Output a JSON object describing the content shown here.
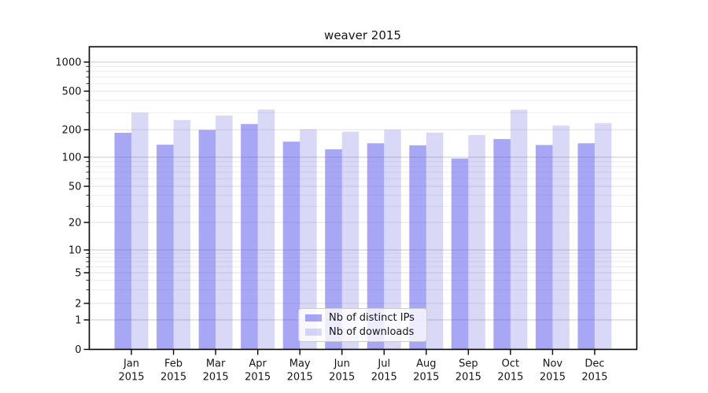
{
  "chart_data": {
    "type": "bar",
    "title": "weaver 2015",
    "categories": [
      "Jan 2015",
      "Feb 2015",
      "Mar 2015",
      "Apr 2015",
      "May 2015",
      "Jun 2015",
      "Jul 2015",
      "Aug 2015",
      "Sep 2015",
      "Oct 2015",
      "Nov 2015",
      "Dec 2015"
    ],
    "series": [
      {
        "name": "Nb of distinct IPs",
        "color": "rgba(80,80,235,0.5)",
        "color_hex": "#a9a9f5",
        "values": [
          185,
          137,
          199,
          229,
          148,
          122,
          142,
          135,
          97,
          158,
          136,
          142
        ]
      },
      {
        "name": "Nb of downloads",
        "color": "rgba(80,80,220,0.22)",
        "color_hex": "#d9d9f7",
        "values": [
          300,
          252,
          280,
          323,
          202,
          190,
          200,
          186,
          175,
          322,
          221,
          234
        ]
      }
    ],
    "yaxis": {
      "scale": "symlog",
      "ticks": [
        0,
        1,
        2,
        5,
        10,
        20,
        50,
        100,
        200,
        500,
        1000
      ],
      "minor_ticks": [
        3,
        4,
        6,
        7,
        8,
        9,
        30,
        40,
        60,
        70,
        80,
        90,
        300,
        400,
        600,
        700,
        800,
        900
      ],
      "range": [
        0,
        1100
      ]
    },
    "xlabel": "",
    "ylabel": "",
    "legend": {
      "entries": [
        "Nb of distinct IPs",
        "Nb of downloads"
      ],
      "position": "lower center"
    },
    "grid": true,
    "colors": {
      "grid_major_power10": "#c8c8c8",
      "grid_major_other": "#e2e2e2",
      "grid_minor": "#eeeeee",
      "spine": "#000000",
      "text": "#151515"
    }
  }
}
